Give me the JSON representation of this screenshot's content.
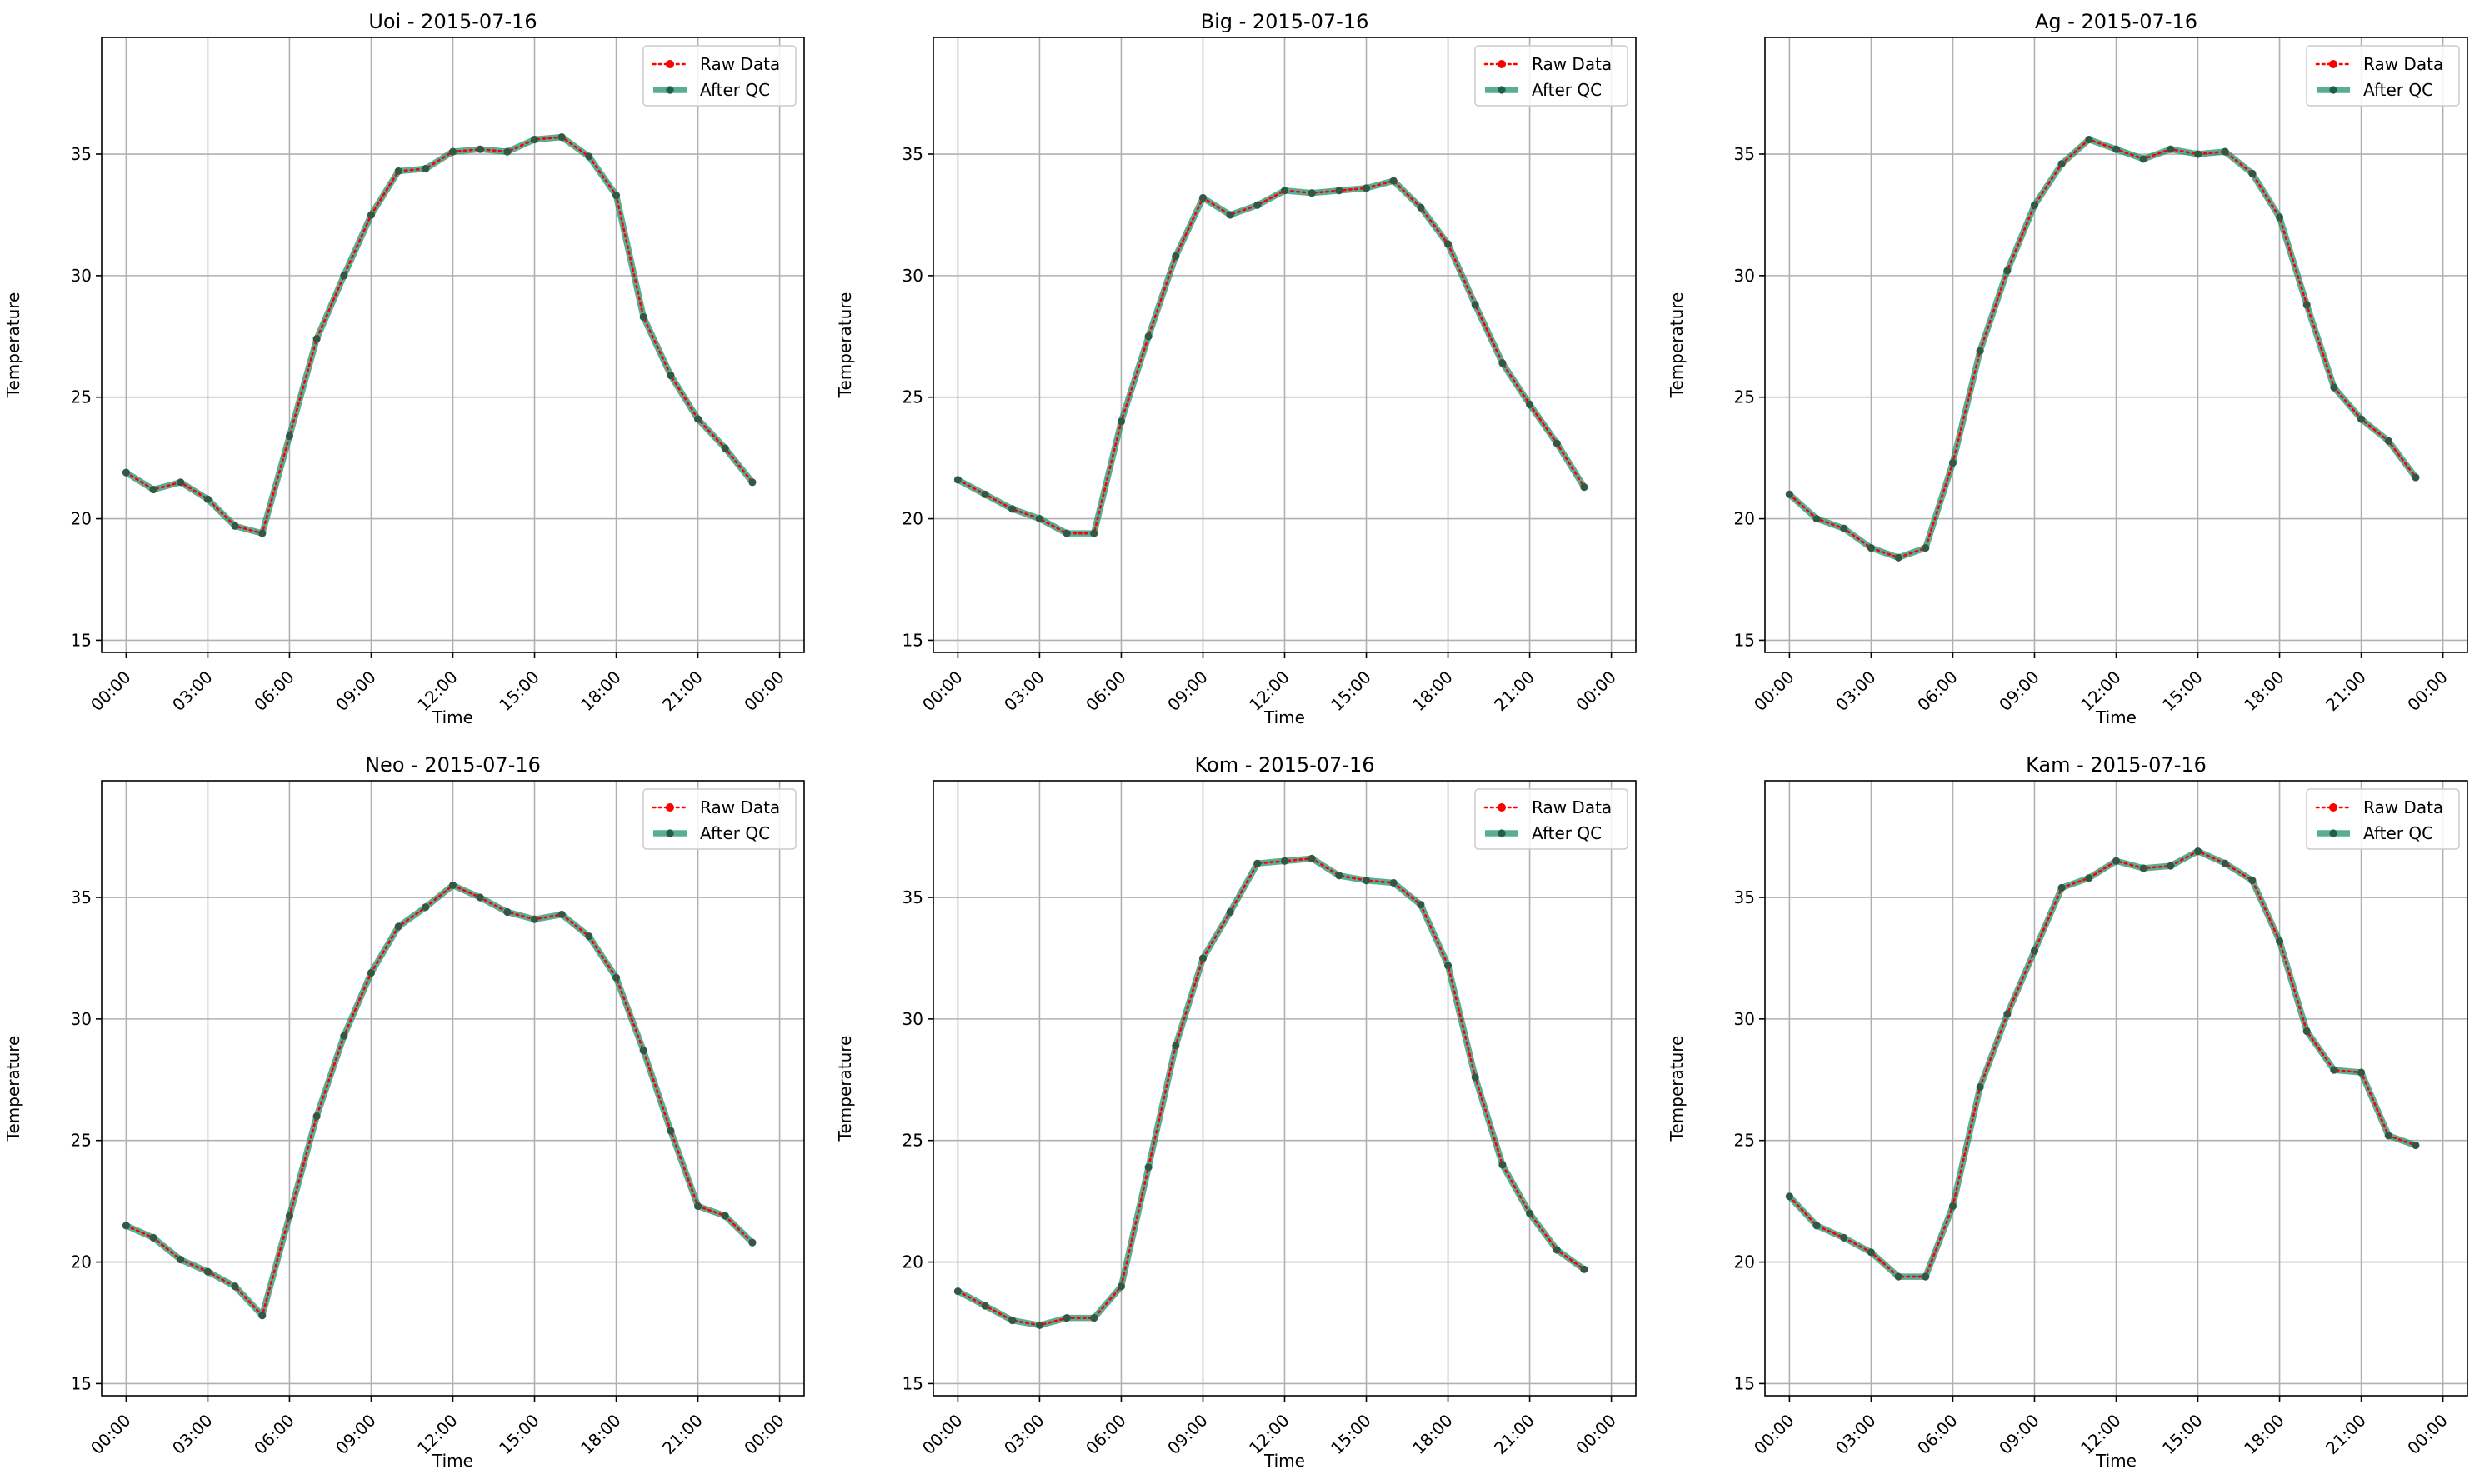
{
  "figure": {
    "panels": [
      {
        "title": "Uoi - 2015-07-16",
        "xlabel": "Time",
        "ylabel": "Temperature",
        "legend": [
          {
            "label": "Raw Data"
          },
          {
            "label": "After QC"
          }
        ]
      },
      {
        "title": "Big - 2015-07-16",
        "xlabel": "Time",
        "ylabel": "Temperature",
        "legend": [
          {
            "label": "Raw Data"
          },
          {
            "label": "After QC"
          }
        ]
      },
      {
        "title": "Ag - 2015-07-16",
        "xlabel": "Time",
        "ylabel": "Temperature",
        "legend": [
          {
            "label": "Raw Data"
          },
          {
            "label": "After QC"
          }
        ]
      },
      {
        "title": "Neo - 2015-07-16",
        "xlabel": "Time",
        "ylabel": "Temperature",
        "legend": [
          {
            "label": "Raw Data"
          },
          {
            "label": "After QC"
          }
        ]
      },
      {
        "title": "Kom - 2015-07-16",
        "xlabel": "Time",
        "ylabel": "Temperature",
        "legend": [
          {
            "label": "Raw Data"
          },
          {
            "label": "After QC"
          }
        ]
      },
      {
        "title": "Kam - 2015-07-16",
        "xlabel": "Time",
        "ylabel": "Temperature",
        "legend": [
          {
            "label": "Raw Data"
          },
          {
            "label": "After QC"
          }
        ]
      }
    ]
  },
  "chart_data": [
    {
      "type": "line",
      "title": "Uoi - 2015-07-16",
      "xlabel": "Time",
      "ylabel": "Temperature",
      "x": [
        "00:00",
        "01:00",
        "02:00",
        "03:00",
        "04:00",
        "05:00",
        "06:00",
        "07:00",
        "08:00",
        "09:00",
        "10:00",
        "11:00",
        "12:00",
        "13:00",
        "14:00",
        "15:00",
        "16:00",
        "17:00",
        "18:00",
        "19:00",
        "20:00",
        "21:00",
        "22:00",
        "23:00"
      ],
      "xlim": [
        "2015-07-15 23:06",
        "2015-07-17 00:54"
      ],
      "x_ticks": [
        "00:00",
        "03:00",
        "06:00",
        "09:00",
        "12:00",
        "15:00",
        "18:00",
        "21:00",
        "00:00"
      ],
      "ylim": [
        14.5,
        39.8
      ],
      "y_ticks": [
        15,
        20,
        25,
        30,
        35
      ],
      "grid": true,
      "legend_position": "top-right",
      "series": [
        {
          "name": "Raw Data",
          "color": "#ff0000",
          "style": "dotted",
          "marker": "circle",
          "values": [
            21.9,
            21.2,
            21.5,
            20.8,
            19.7,
            19.4,
            23.4,
            27.4,
            30.0,
            32.5,
            34.3,
            34.4,
            35.1,
            35.2,
            35.1,
            35.6,
            35.7,
            34.9,
            33.3,
            28.3,
            25.9,
            24.1,
            22.9,
            21.5
          ]
        },
        {
          "name": "After QC",
          "color": "#178d6b",
          "style": "solid",
          "marker": "circle",
          "values": [
            21.9,
            21.2,
            21.5,
            20.8,
            19.7,
            19.4,
            23.4,
            27.4,
            30.0,
            32.5,
            34.3,
            34.4,
            35.1,
            35.2,
            35.1,
            35.6,
            35.7,
            34.9,
            33.3,
            28.3,
            25.9,
            24.1,
            22.9,
            21.5
          ]
        }
      ]
    },
    {
      "type": "line",
      "title": "Big - 2015-07-16",
      "xlabel": "Time",
      "ylabel": "Temperature",
      "x": [
        "00:00",
        "01:00",
        "02:00",
        "03:00",
        "04:00",
        "05:00",
        "06:00",
        "07:00",
        "08:00",
        "09:00",
        "10:00",
        "11:00",
        "12:00",
        "13:00",
        "14:00",
        "15:00",
        "16:00",
        "17:00",
        "18:00",
        "19:00",
        "20:00",
        "21:00",
        "22:00",
        "23:00"
      ],
      "xlim": [
        "2015-07-15 23:06",
        "2015-07-17 00:54"
      ],
      "x_ticks": [
        "00:00",
        "03:00",
        "06:00",
        "09:00",
        "12:00",
        "15:00",
        "18:00",
        "21:00",
        "00:00"
      ],
      "ylim": [
        14.5,
        39.8
      ],
      "y_ticks": [
        15,
        20,
        25,
        30,
        35
      ],
      "grid": true,
      "legend_position": "top-right",
      "series": [
        {
          "name": "Raw Data",
          "color": "#ff0000",
          "style": "dotted",
          "marker": "circle",
          "values": [
            21.6,
            21.0,
            20.4,
            20.0,
            19.4,
            19.4,
            24.0,
            27.5,
            30.8,
            33.2,
            32.5,
            32.9,
            33.5,
            33.4,
            33.5,
            33.6,
            33.9,
            32.8,
            31.3,
            28.8,
            26.4,
            24.7,
            23.1,
            21.3
          ]
        },
        {
          "name": "After QC",
          "color": "#178d6b",
          "style": "solid",
          "marker": "circle",
          "values": [
            21.6,
            21.0,
            20.4,
            20.0,
            19.4,
            19.4,
            24.0,
            27.5,
            30.8,
            33.2,
            32.5,
            32.9,
            33.5,
            33.4,
            33.5,
            33.6,
            33.9,
            32.8,
            31.3,
            28.8,
            26.4,
            24.7,
            23.1,
            21.3
          ]
        }
      ]
    },
    {
      "type": "line",
      "title": "Ag - 2015-07-16",
      "xlabel": "Time",
      "ylabel": "Temperature",
      "x": [
        "00:00",
        "01:00",
        "02:00",
        "03:00",
        "04:00",
        "05:00",
        "06:00",
        "07:00",
        "08:00",
        "09:00",
        "10:00",
        "11:00",
        "12:00",
        "13:00",
        "14:00",
        "15:00",
        "16:00",
        "17:00",
        "18:00",
        "19:00",
        "20:00",
        "21:00",
        "22:00",
        "23:00"
      ],
      "xlim": [
        "2015-07-15 23:06",
        "2015-07-17 00:54"
      ],
      "x_ticks": [
        "00:00",
        "03:00",
        "06:00",
        "09:00",
        "12:00",
        "15:00",
        "18:00",
        "21:00",
        "00:00"
      ],
      "ylim": [
        14.5,
        39.8
      ],
      "y_ticks": [
        15,
        20,
        25,
        30,
        35
      ],
      "grid": true,
      "legend_position": "top-right",
      "series": [
        {
          "name": "Raw Data",
          "color": "#ff0000",
          "style": "dotted",
          "marker": "circle",
          "values": [
            21.0,
            20.0,
            19.6,
            18.8,
            18.4,
            18.8,
            22.3,
            26.9,
            30.2,
            32.9,
            34.6,
            35.6,
            35.2,
            34.8,
            35.2,
            35.0,
            35.1,
            34.2,
            32.4,
            28.8,
            25.4,
            24.1,
            23.2,
            21.7
          ]
        },
        {
          "name": "After QC",
          "color": "#178d6b",
          "style": "solid",
          "marker": "circle",
          "values": [
            21.0,
            20.0,
            19.6,
            18.8,
            18.4,
            18.8,
            22.3,
            26.9,
            30.2,
            32.9,
            34.6,
            35.6,
            35.2,
            34.8,
            35.2,
            35.0,
            35.1,
            34.2,
            32.4,
            28.8,
            25.4,
            24.1,
            23.2,
            21.7
          ]
        }
      ]
    },
    {
      "type": "line",
      "title": "Neo - 2015-07-16",
      "xlabel": "Time",
      "ylabel": "Temperature",
      "x": [
        "00:00",
        "01:00",
        "02:00",
        "03:00",
        "04:00",
        "05:00",
        "06:00",
        "07:00",
        "08:00",
        "09:00",
        "10:00",
        "11:00",
        "12:00",
        "13:00",
        "14:00",
        "15:00",
        "16:00",
        "17:00",
        "18:00",
        "19:00",
        "20:00",
        "21:00",
        "22:00",
        "23:00"
      ],
      "xlim": [
        "2015-07-15 23:06",
        "2015-07-17 00:54"
      ],
      "x_ticks": [
        "00:00",
        "03:00",
        "06:00",
        "09:00",
        "12:00",
        "15:00",
        "18:00",
        "21:00",
        "00:00"
      ],
      "ylim": [
        14.5,
        39.8
      ],
      "y_ticks": [
        15,
        20,
        25,
        30,
        35
      ],
      "grid": true,
      "legend_position": "top-right",
      "series": [
        {
          "name": "Raw Data",
          "color": "#ff0000",
          "style": "dotted",
          "marker": "circle",
          "values": [
            21.5,
            21.0,
            20.1,
            19.6,
            19.0,
            17.8,
            21.9,
            26.0,
            29.3,
            31.9,
            33.8,
            34.6,
            35.5,
            35.0,
            34.4,
            34.1,
            34.3,
            33.4,
            31.7,
            28.7,
            25.4,
            22.3,
            21.9,
            20.8
          ]
        },
        {
          "name": "After QC",
          "color": "#178d6b",
          "style": "solid",
          "marker": "circle",
          "values": [
            21.5,
            21.0,
            20.1,
            19.6,
            19.0,
            17.8,
            21.9,
            26.0,
            29.3,
            31.9,
            33.8,
            34.6,
            35.5,
            35.0,
            34.4,
            34.1,
            34.3,
            33.4,
            31.7,
            28.7,
            25.4,
            22.3,
            21.9,
            20.8
          ]
        }
      ]
    },
    {
      "type": "line",
      "title": "Kom - 2015-07-16",
      "xlabel": "Time",
      "ylabel": "Temperature",
      "x": [
        "00:00",
        "01:00",
        "02:00",
        "03:00",
        "04:00",
        "05:00",
        "06:00",
        "07:00",
        "08:00",
        "09:00",
        "10:00",
        "11:00",
        "12:00",
        "13:00",
        "14:00",
        "15:00",
        "16:00",
        "17:00",
        "18:00",
        "19:00",
        "20:00",
        "21:00",
        "22:00",
        "23:00"
      ],
      "xlim": [
        "2015-07-15 23:06",
        "2015-07-17 00:54"
      ],
      "x_ticks": [
        "00:00",
        "03:00",
        "06:00",
        "09:00",
        "12:00",
        "15:00",
        "18:00",
        "21:00",
        "00:00"
      ],
      "ylim": [
        14.5,
        39.8
      ],
      "y_ticks": [
        15,
        20,
        25,
        30,
        35
      ],
      "grid": true,
      "legend_position": "top-right",
      "series": [
        {
          "name": "Raw Data",
          "color": "#ff0000",
          "style": "dotted",
          "marker": "circle",
          "values": [
            18.8,
            18.2,
            17.6,
            17.4,
            17.7,
            17.7,
            19.0,
            23.9,
            28.9,
            32.5,
            34.4,
            36.4,
            36.5,
            36.6,
            35.9,
            35.7,
            35.6,
            34.7,
            32.2,
            27.6,
            24.0,
            22.0,
            20.5,
            19.7
          ]
        },
        {
          "name": "After QC",
          "color": "#178d6b",
          "style": "solid",
          "marker": "circle",
          "values": [
            18.8,
            18.2,
            17.6,
            17.4,
            17.7,
            17.7,
            19.0,
            23.9,
            28.9,
            32.5,
            34.4,
            36.4,
            36.5,
            36.6,
            35.9,
            35.7,
            35.6,
            34.7,
            32.2,
            27.6,
            24.0,
            22.0,
            20.5,
            19.7
          ]
        }
      ]
    },
    {
      "type": "line",
      "title": "Kam - 2015-07-16",
      "xlabel": "Time",
      "ylabel": "Temperature",
      "x": [
        "00:00",
        "01:00",
        "02:00",
        "03:00",
        "04:00",
        "05:00",
        "06:00",
        "07:00",
        "08:00",
        "09:00",
        "10:00",
        "11:00",
        "12:00",
        "13:00",
        "14:00",
        "15:00",
        "16:00",
        "17:00",
        "18:00",
        "19:00",
        "20:00",
        "21:00",
        "22:00",
        "23:00"
      ],
      "xlim": [
        "2015-07-15 23:06",
        "2015-07-17 00:54"
      ],
      "x_ticks": [
        "00:00",
        "03:00",
        "06:00",
        "09:00",
        "12:00",
        "15:00",
        "18:00",
        "21:00",
        "00:00"
      ],
      "ylim": [
        14.5,
        39.8
      ],
      "y_ticks": [
        15,
        20,
        25,
        30,
        35
      ],
      "grid": true,
      "legend_position": "top-right",
      "series": [
        {
          "name": "Raw Data",
          "color": "#ff0000",
          "style": "dotted",
          "marker": "circle",
          "values": [
            22.7,
            21.5,
            21.0,
            20.4,
            19.4,
            19.4,
            22.3,
            27.2,
            30.2,
            32.8,
            35.4,
            35.8,
            36.5,
            36.2,
            36.3,
            36.9,
            36.4,
            35.7,
            33.2,
            29.5,
            27.9,
            27.8,
            25.2,
            24.8
          ]
        },
        {
          "name": "After QC",
          "color": "#178d6b",
          "style": "solid",
          "marker": "circle",
          "values": [
            22.7,
            21.5,
            21.0,
            20.4,
            19.4,
            19.4,
            22.3,
            27.2,
            30.2,
            32.8,
            35.4,
            35.8,
            36.5,
            36.2,
            36.3,
            36.9,
            36.4,
            35.7,
            33.2,
            29.5,
            27.9,
            27.8,
            25.2,
            24.8
          ]
        }
      ]
    }
  ]
}
